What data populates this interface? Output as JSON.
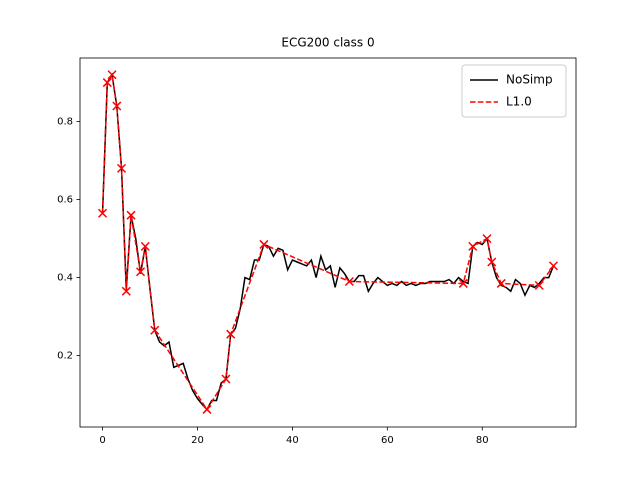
{
  "chart_data": {
    "type": "line",
    "title": "ECG200 class 0",
    "xlim": [
      -4.75,
      99.75
    ],
    "ylim": [
      0.017,
      0.963
    ],
    "xticks": [
      0,
      20,
      40,
      60,
      80
    ],
    "yticks": [
      0.2,
      0.4,
      0.6,
      0.8
    ],
    "legend": "upper right",
    "series": [
      {
        "name": "NoSimp",
        "color": "#000000",
        "style": "solid",
        "x": [
          0,
          1,
          2,
          3,
          4,
          5,
          6,
          7,
          8,
          9,
          10,
          11,
          12,
          13,
          14,
          15,
          16,
          17,
          18,
          19,
          20,
          21,
          22,
          23,
          24,
          25,
          26,
          27,
          28,
          29,
          30,
          31,
          32,
          33,
          34,
          35,
          36,
          37,
          38,
          39,
          40,
          41,
          42,
          43,
          44,
          45,
          46,
          47,
          48,
          49,
          50,
          51,
          52,
          53,
          54,
          55,
          56,
          57,
          58,
          59,
          60,
          61,
          62,
          63,
          64,
          65,
          66,
          67,
          68,
          69,
          70,
          71,
          72,
          73,
          74,
          75,
          76,
          77,
          78,
          79,
          80,
          81,
          82,
          83,
          84,
          85,
          86,
          87,
          88,
          89,
          90,
          91,
          92,
          93,
          94,
          95
        ],
        "values": [
          0.565,
          0.9,
          0.92,
          0.84,
          0.68,
          0.37,
          0.56,
          0.5,
          0.41,
          0.48,
          0.37,
          0.265,
          0.235,
          0.225,
          0.235,
          0.17,
          0.175,
          0.18,
          0.14,
          0.11,
          0.09,
          0.075,
          0.062,
          0.085,
          0.085,
          0.13,
          0.14,
          0.255,
          0.27,
          0.32,
          0.4,
          0.395,
          0.445,
          0.445,
          0.485,
          0.48,
          0.455,
          0.475,
          0.47,
          0.42,
          0.445,
          0.44,
          0.435,
          0.43,
          0.445,
          0.4,
          0.455,
          0.42,
          0.43,
          0.375,
          0.425,
          0.41,
          0.39,
          0.39,
          0.405,
          0.405,
          0.365,
          0.385,
          0.4,
          0.39,
          0.38,
          0.385,
          0.38,
          0.39,
          0.38,
          0.385,
          0.38,
          0.385,
          0.385,
          0.39,
          0.39,
          0.39,
          0.39,
          0.395,
          0.385,
          0.4,
          0.39,
          0.385,
          0.48,
          0.49,
          0.485,
          0.5,
          0.44,
          0.4,
          0.38,
          0.375,
          0.365,
          0.395,
          0.385,
          0.355,
          0.38,
          0.375,
          0.385,
          0.4,
          0.4,
          0.43
        ]
      },
      {
        "name": "L1.0",
        "color": "#ff0000",
        "style": "dashed",
        "marker": "x",
        "x": [
          0,
          1,
          2,
          3,
          4,
          5,
          6,
          8,
          9,
          11,
          22,
          26,
          27,
          34,
          52,
          76,
          78,
          81,
          82,
          84,
          92,
          95
        ],
        "values": [
          0.565,
          0.9,
          0.92,
          0.84,
          0.68,
          0.365,
          0.56,
          0.415,
          0.48,
          0.265,
          0.062,
          0.14,
          0.255,
          0.485,
          0.39,
          0.385,
          0.48,
          0.5,
          0.44,
          0.385,
          0.38,
          0.43
        ]
      }
    ]
  }
}
